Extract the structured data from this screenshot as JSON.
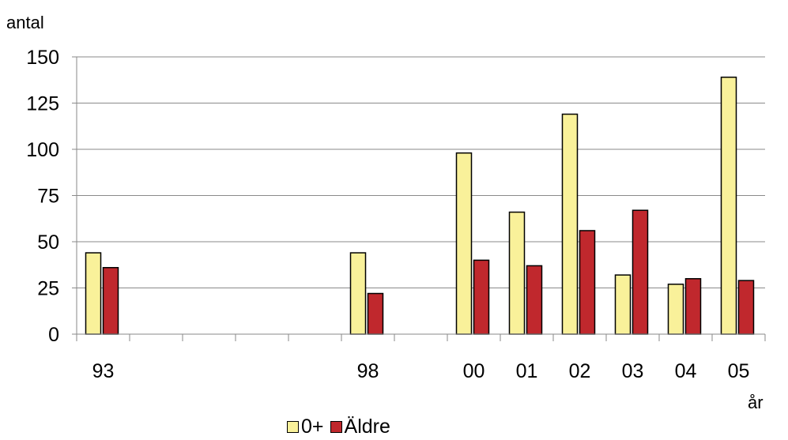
{
  "chart_data": {
    "type": "bar",
    "ylabel": "antal",
    "xlabel": "år",
    "ylim": [
      0,
      150
    ],
    "yticks": [
      0,
      25,
      50,
      75,
      100,
      125,
      150
    ],
    "categories": [
      "93",
      "",
      "",
      "",
      "",
      "98",
      "",
      "00",
      "01",
      "02",
      "03",
      "04",
      "05"
    ],
    "series": [
      {
        "name": "0+",
        "color": "#f9f19a",
        "values": [
          44,
          null,
          null,
          null,
          null,
          44,
          null,
          98,
          66,
          119,
          32,
          27,
          139
        ]
      },
      {
        "name": "Äldre",
        "color": "#c0282d",
        "values": [
          36,
          null,
          null,
          null,
          null,
          22,
          null,
          40,
          37,
          56,
          67,
          30,
          29
        ]
      }
    ],
    "grid": "horizontal",
    "legend_position": "bottom"
  }
}
